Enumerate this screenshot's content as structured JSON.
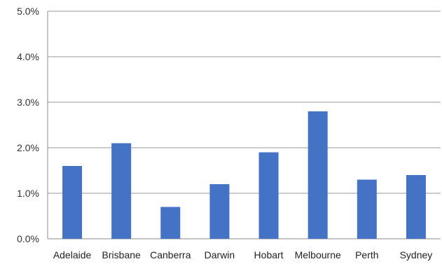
{
  "chart_data": {
    "type": "bar",
    "categories": [
      "Adelaide",
      "Brisbane",
      "Canberra",
      "Darwin",
      "Hobart",
      "Melbourne",
      "Perth",
      "Sydney"
    ],
    "values": [
      1.6,
      2.1,
      0.7,
      1.2,
      1.9,
      2.8,
      1.3,
      1.4
    ],
    "value_unit": "%",
    "ylim": [
      0,
      5
    ],
    "y_ticks": [
      "0.0%",
      "1.0%",
      "2.0%",
      "3.0%",
      "4.0%",
      "5.0%"
    ],
    "grid": true,
    "bar_color": "#4472C4",
    "title": "",
    "xlabel": "",
    "ylabel": ""
  }
}
